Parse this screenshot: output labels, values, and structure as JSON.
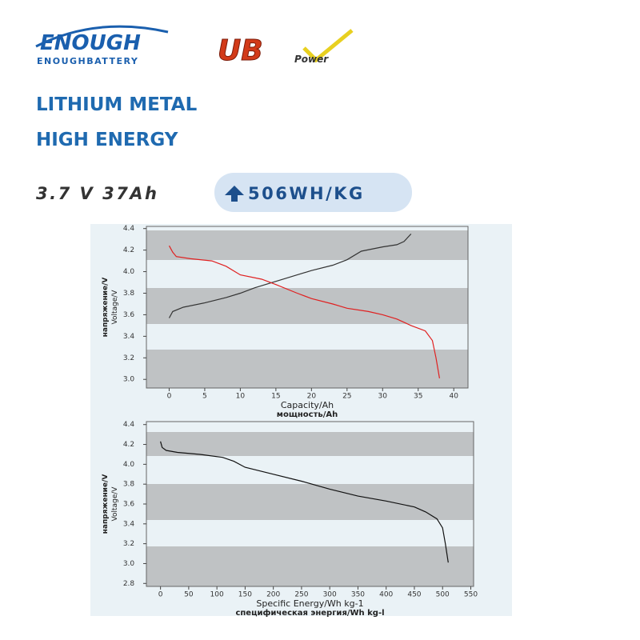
{
  "header": {
    "logo": "ENOUGH",
    "logo_sub": "ENOUGHBATTERY",
    "brand": "UB",
    "brand_sub": "Power",
    "title_1": "LITHIUM METAL",
    "title_2": "HIGH ENERGY",
    "spec": "3.7 V 37Ah",
    "badge": "506WH/KG"
  },
  "chart_data": [
    {
      "type": "line",
      "xlabel": "Capacity/Ah",
      "xlabel_ru": "мощность/Ah",
      "ylabel": "Voltage/V",
      "ylabel_ru": "напряжение/V",
      "xlim": [
        -3.2,
        42
      ],
      "ylim": [
        2.92,
        4.42
      ],
      "xticks": [
        0,
        5,
        10,
        15,
        20,
        25,
        30,
        35,
        40
      ],
      "yticks": [
        {
          "value": 3,
          "label": "3.0"
        },
        3.2,
        3.4,
        3.6,
        3.8,
        {
          "value": 4,
          "label": "4.0"
        },
        4.2,
        4.4
      ],
      "series": [
        {
          "color": "#333333",
          "x": [
            0,
            0.5,
            2,
            5,
            8,
            10,
            12,
            15,
            18,
            20,
            23,
            25,
            27,
            30,
            32,
            33,
            34
          ],
          "values": [
            3.57,
            3.63,
            3.67,
            3.71,
            3.76,
            3.8,
            3.85,
            3.91,
            3.97,
            4.01,
            4.06,
            4.11,
            4.19,
            4.23,
            4.25,
            4.28,
            4.35
          ]
        },
        {
          "color": "#e02020",
          "x": [
            0,
            0.5,
            1,
            3,
            6,
            8,
            10,
            13,
            15,
            18,
            20,
            23,
            25,
            28,
            30,
            32,
            34,
            36,
            37,
            37.5,
            38
          ],
          "values": [
            4.24,
            4.18,
            4.14,
            4.12,
            4.1,
            4.05,
            3.97,
            3.93,
            3.88,
            3.8,
            3.75,
            3.7,
            3.66,
            3.63,
            3.6,
            3.56,
            3.5,
            3.45,
            3.36,
            3.2,
            3.01
          ]
        }
      ]
    },
    {
      "type": "line",
      "xlabel": "Specific Energy/Wh kg-1",
      "xlabel_ru": "специфическая энергия/Wh kg-l",
      "ylabel": "Voltage/V",
      "ylabel_ru": "напряжение/V",
      "xlim": [
        -25,
        555
      ],
      "ylim": [
        2.77,
        4.43
      ],
      "xticks": [
        0,
        50,
        100,
        150,
        200,
        250,
        300,
        350,
        400,
        450,
        500,
        550
      ],
      "yticks": [
        2.8,
        {
          "value": 3,
          "label": "3.0"
        },
        3.2,
        3.4,
        3.6,
        3.8,
        {
          "value": 4,
          "label": "4.0"
        },
        4.2,
        4.4
      ],
      "series": [
        {
          "color": "#111111",
          "x": [
            0,
            3,
            10,
            30,
            70,
            110,
            130,
            150,
            200,
            250,
            300,
            350,
            400,
            450,
            470,
            490,
            500,
            505,
            510
          ],
          "values": [
            4.23,
            4.17,
            4.14,
            4.12,
            4.1,
            4.07,
            4.03,
            3.97,
            3.9,
            3.83,
            3.75,
            3.68,
            3.63,
            3.57,
            3.52,
            3.45,
            3.36,
            3.2,
            3.01
          ]
        }
      ]
    }
  ]
}
